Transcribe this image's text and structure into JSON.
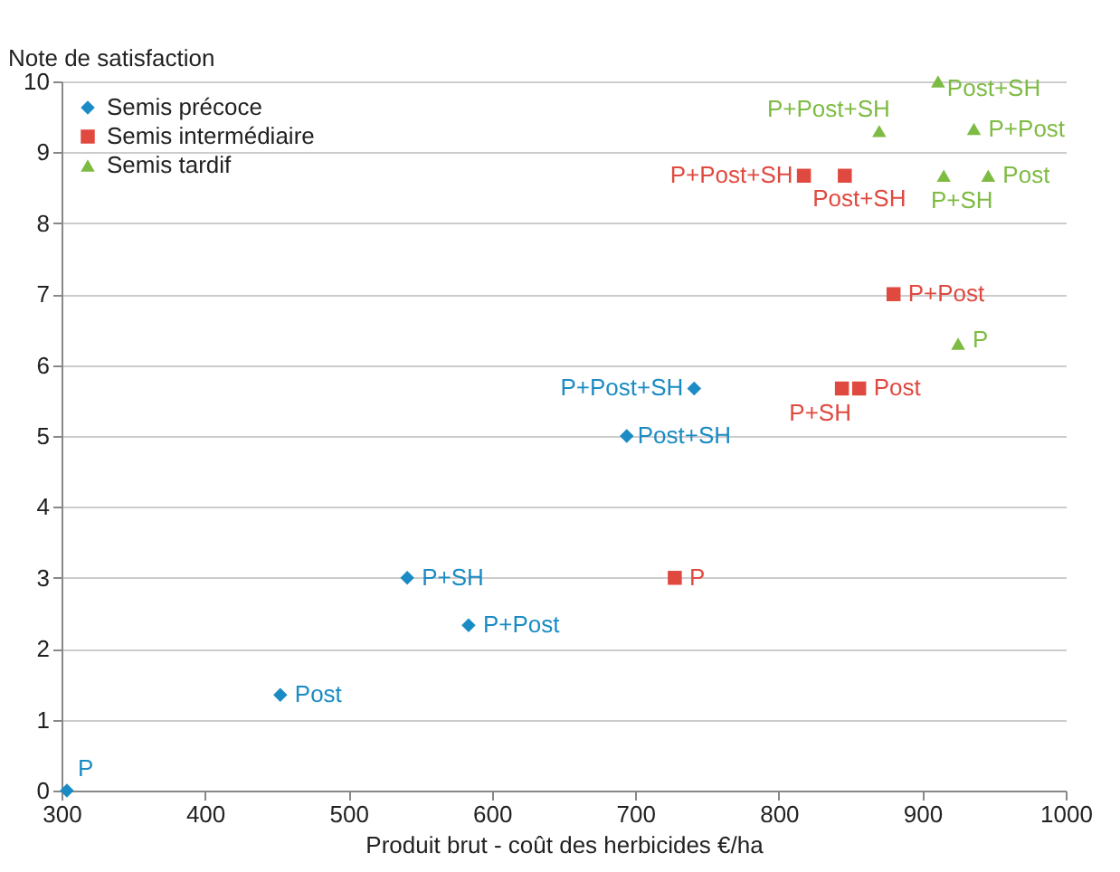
{
  "chart_data": {
    "type": "scatter",
    "ylabel": "Note de satisfaction",
    "xlabel": "Produit brut - coût des herbicides €/ha",
    "xlim": [
      300,
      1000
    ],
    "xticks": [
      300,
      400,
      500,
      600,
      700,
      800,
      900,
      1000
    ],
    "ylim": [
      0,
      10
    ],
    "yticks": [
      0,
      1,
      2,
      3,
      4,
      5,
      6,
      7,
      8,
      9,
      10
    ],
    "grid": "y",
    "legend": "top left",
    "series": [
      {
        "name": "Semis précoce",
        "color": "#1a8bc4",
        "marker": "diamond",
        "x": [
          303.75,
          452.5,
          583.75,
          541,
          694,
          741
        ],
        "values": [
          0,
          1.35,
          2.33,
          3,
          5,
          5.67
        ]
      },
      {
        "name": "Semis intermédiaire",
        "color": "#e0493f",
        "marker": "square",
        "x": [
          727.5,
          844,
          856,
          880,
          817.5,
          846
        ],
        "values": [
          3,
          5.67,
          5.67,
          7,
          8.67,
          8.67
        ]
      },
      {
        "name": "Semis tardif",
        "color": "#7dbb42",
        "marker": "triangle",
        "x": [
          925,
          915,
          946,
          936,
          870,
          911
        ],
        "values": [
          6.3,
          8.67,
          8.67,
          9.33,
          9.3,
          10
        ]
      }
    ],
    "annotations": [
      {
        "text": "P",
        "x": 303.75,
        "y": 0
      },
      {
        "text": "Post",
        "x": 452.5,
        "y": 1.35
      },
      {
        "text": "P+Post",
        "x": 583.75,
        "y": 2.33
      },
      {
        "text": "P+SH",
        "x": 541,
        "y": 3
      },
      {
        "text": "Post+SH",
        "x": 694,
        "y": 5
      },
      {
        "text": "P+Post+SH",
        "x": 741,
        "y": 5.67
      },
      {
        "text": "P",
        "x": 727.5,
        "y": 3
      },
      {
        "text": "P+SH",
        "x": 844,
        "y": 5.67
      },
      {
        "text": "Post",
        "x": 856,
        "y": 5.67
      },
      {
        "text": "P+Post",
        "x": 880,
        "y": 7
      },
      {
        "text": "P+Post+SH",
        "x": 817.5,
        "y": 8.67
      },
      {
        "text": "Post+SH",
        "x": 846,
        "y": 8.67
      },
      {
        "text": "P",
        "x": 925,
        "y": 6.3
      },
      {
        "text": "P+SH",
        "x": 915,
        "y": 8.67
      },
      {
        "text": "Post",
        "x": 946,
        "y": 8.67
      },
      {
        "text": "P+Post",
        "x": 936,
        "y": 9.33
      },
      {
        "text": "P+Post+SH",
        "x": 870,
        "y": 9.3
      },
      {
        "text": "Post+SH",
        "x": 911,
        "y": 10
      }
    ]
  }
}
